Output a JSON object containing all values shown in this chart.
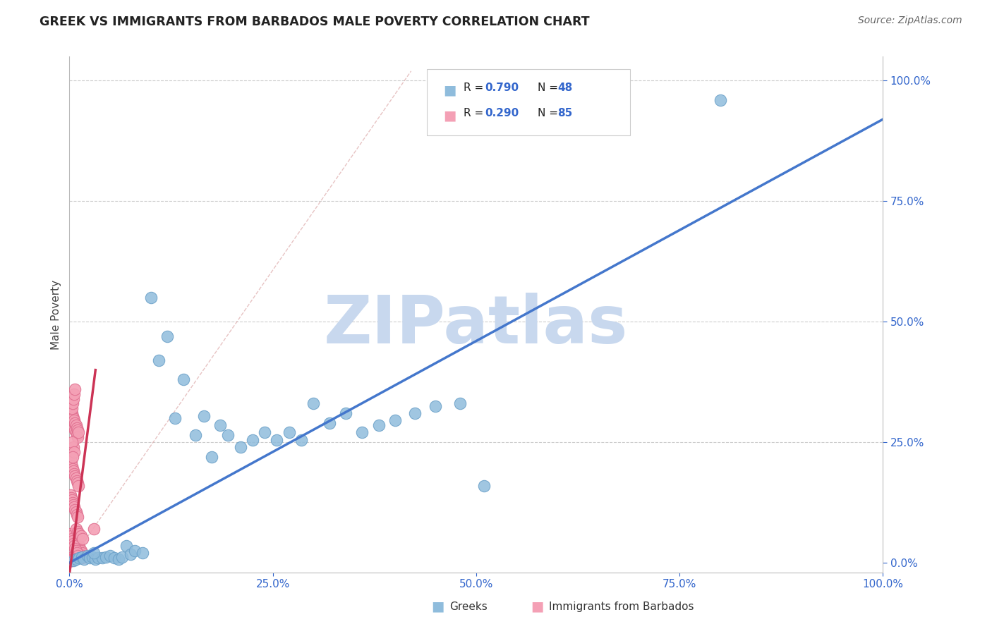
{
  "title": "GREEK VS IMMIGRANTS FROM BARBADOS MALE POVERTY CORRELATION CHART",
  "source": "Source: ZipAtlas.com",
  "ylabel": "Male Poverty",
  "xlim": [
    0,
    1
  ],
  "ylim": [
    -0.02,
    1.05
  ],
  "greek_color": "#8fbcdc",
  "greek_edge_color": "#6aa0c8",
  "barbados_color": "#f4a0b5",
  "barbados_edge_color": "#e07090",
  "greek_R": 0.79,
  "greek_N": 48,
  "barbados_R": 0.29,
  "barbados_N": 85,
  "greek_line_color": "#4477cc",
  "barbados_line_color": "#cc3355",
  "watermark": "ZIPatlas",
  "watermark_color": "#c8d8ee",
  "greek_points_x": [
    0.005,
    0.008,
    0.012,
    0.015,
    0.018,
    0.022,
    0.025,
    0.028,
    0.032,
    0.035,
    0.04,
    0.045,
    0.05,
    0.055,
    0.06,
    0.065,
    0.07,
    0.075,
    0.08,
    0.09,
    0.1,
    0.11,
    0.12,
    0.13,
    0.14,
    0.155,
    0.165,
    0.175,
    0.185,
    0.195,
    0.21,
    0.225,
    0.24,
    0.255,
    0.27,
    0.285,
    0.3,
    0.32,
    0.34,
    0.36,
    0.38,
    0.4,
    0.425,
    0.45,
    0.48,
    0.51,
    0.8,
    0.03
  ],
  "greek_points_y": [
    0.005,
    0.008,
    0.01,
    0.012,
    0.008,
    0.015,
    0.01,
    0.012,
    0.008,
    0.01,
    0.01,
    0.012,
    0.015,
    0.01,
    0.008,
    0.012,
    0.035,
    0.018,
    0.025,
    0.02,
    0.55,
    0.42,
    0.47,
    0.3,
    0.38,
    0.265,
    0.305,
    0.22,
    0.285,
    0.265,
    0.24,
    0.255,
    0.27,
    0.255,
    0.27,
    0.255,
    0.33,
    0.29,
    0.31,
    0.27,
    0.285,
    0.295,
    0.31,
    0.325,
    0.33,
    0.16,
    0.96,
    0.02
  ],
  "barbados_points_x": [
    0.001,
    0.002,
    0.002,
    0.003,
    0.003,
    0.004,
    0.004,
    0.005,
    0.005,
    0.006,
    0.006,
    0.007,
    0.007,
    0.008,
    0.008,
    0.009,
    0.009,
    0.01,
    0.01,
    0.011,
    0.011,
    0.012,
    0.012,
    0.013,
    0.013,
    0.014,
    0.014,
    0.015,
    0.015,
    0.016,
    0.002,
    0.003,
    0.004,
    0.005,
    0.006,
    0.007,
    0.008,
    0.009,
    0.01,
    0.011,
    0.001,
    0.002,
    0.003,
    0.004,
    0.005,
    0.006,
    0.007,
    0.008,
    0.009,
    0.01,
    0.001,
    0.002,
    0.003,
    0.004,
    0.005,
    0.006,
    0.007,
    0.008,
    0.009,
    0.01,
    0.001,
    0.002,
    0.001,
    0.002,
    0.001,
    0.002,
    0.001,
    0.002,
    0.001,
    0.002,
    0.003,
    0.004,
    0.005,
    0.006,
    0.007,
    0.03,
    0.005,
    0.003,
    0.006,
    0.004,
    0.008,
    0.01,
    0.012,
    0.014,
    0.016
  ],
  "barbados_points_y": [
    0.32,
    0.315,
    0.3,
    0.31,
    0.295,
    0.305,
    0.29,
    0.3,
    0.285,
    0.295,
    0.28,
    0.29,
    0.275,
    0.285,
    0.27,
    0.28,
    0.265,
    0.275,
    0.26,
    0.27,
    0.03,
    0.035,
    0.025,
    0.03,
    0.02,
    0.025,
    0.015,
    0.02,
    0.01,
    0.015,
    0.21,
    0.2,
    0.195,
    0.19,
    0.185,
    0.18,
    0.175,
    0.17,
    0.165,
    0.16,
    0.14,
    0.135,
    0.13,
    0.125,
    0.12,
    0.115,
    0.11,
    0.105,
    0.1,
    0.095,
    0.06,
    0.055,
    0.05,
    0.045,
    0.04,
    0.035,
    0.03,
    0.025,
    0.02,
    0.015,
    0.005,
    0.005,
    0.01,
    0.01,
    0.008,
    0.008,
    0.006,
    0.006,
    0.004,
    0.004,
    0.32,
    0.33,
    0.34,
    0.35,
    0.36,
    0.07,
    0.24,
    0.25,
    0.23,
    0.22,
    0.07,
    0.065,
    0.06,
    0.055,
    0.05
  ]
}
